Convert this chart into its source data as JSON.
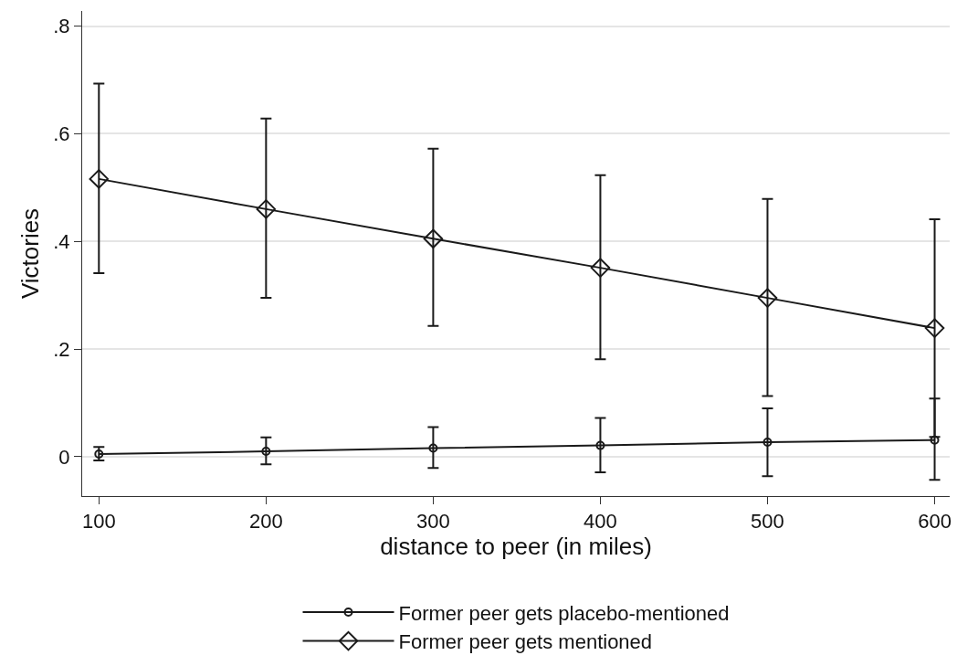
{
  "chart_data": {
    "type": "line",
    "xlabel": "distance to peer (in miles)",
    "ylabel": "Victories",
    "x": [
      100,
      200,
      300,
      400,
      500,
      600
    ],
    "series": [
      {
        "name": "Former peer gets placebo-mentioned",
        "color": "#1a1a1a",
        "marker": "circle",
        "values": [
          0.005,
          0.01,
          0.016,
          0.021,
          0.027,
          0.031
        ],
        "errors": [
          [
            -0.007,
            0.018
          ],
          [
            -0.014,
            0.036
          ],
          [
            -0.021,
            0.055
          ],
          [
            -0.029,
            0.072
          ],
          [
            -0.036,
            0.09
          ],
          [
            -0.043,
            0.108
          ]
        ]
      },
      {
        "name": "Former peer gets mentioned",
        "color": "#1a1a1a",
        "marker": "diamond",
        "values": [
          0.516,
          0.46,
          0.405,
          0.351,
          0.295,
          0.239
        ],
        "errors": [
          [
            0.341,
            0.693
          ],
          [
            0.295,
            0.628
          ],
          [
            0.243,
            0.572
          ],
          [
            0.181,
            0.523
          ],
          [
            0.113,
            0.479
          ],
          [
            0.037,
            0.441
          ]
        ]
      }
    ],
    "xlim": [
      90,
      609
    ],
    "xticks": [
      100,
      200,
      300,
      400,
      500,
      600
    ],
    "ylim": [
      -0.073,
      0.828
    ],
    "yticks": [
      {
        "value": 0,
        "label": "0"
      },
      {
        "value": 0.2,
        "label": ".2"
      },
      {
        "value": 0.4,
        "label": ".4"
      },
      {
        "value": 0.6,
        "label": ".6"
      },
      {
        "value": 0.8,
        "label": ".8"
      }
    ],
    "grid": "y",
    "legend": "bottom"
  }
}
